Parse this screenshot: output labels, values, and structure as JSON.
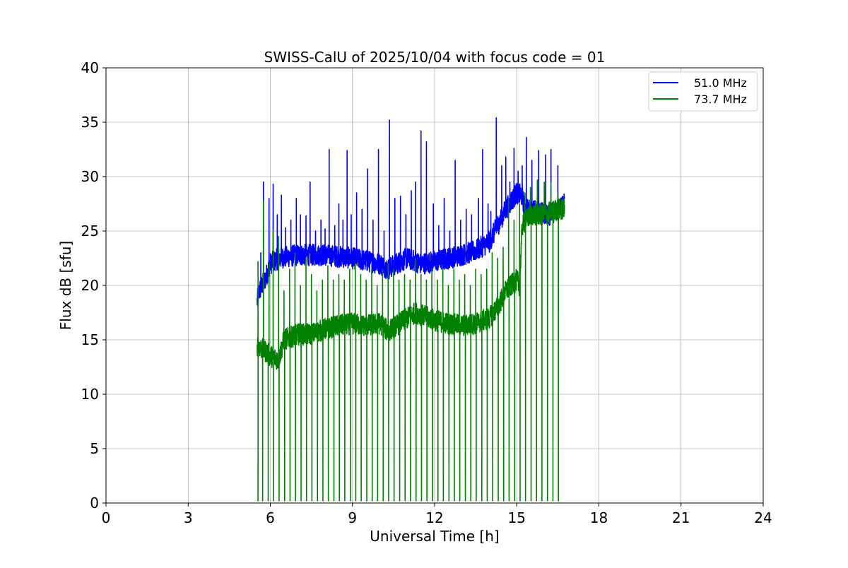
{
  "chart_data": {
    "type": "line",
    "title": "SWISS-CalU of 2025/10/04 with focus code = 01",
    "xlabel": "Universal Time [h]",
    "ylabel": "Flux dB [sfu]",
    "xlim": [
      0,
      24
    ],
    "ylim": [
      0,
      40
    ],
    "xticks": [
      0,
      3,
      6,
      9,
      12,
      15,
      18,
      21,
      24
    ],
    "yticks": [
      0,
      5,
      10,
      15,
      20,
      25,
      30,
      35,
      40
    ],
    "grid": true,
    "legend_position": "top-right",
    "data_start_h": 5.52,
    "data_end_h": 16.75,
    "series": [
      {
        "name": "51.0 MHz",
        "legend_label": "51.0 MHz",
        "color": "#0000ff",
        "baseline": [
          [
            5.52,
            18.5
          ],
          [
            5.6,
            19.5
          ],
          [
            5.8,
            20.5
          ],
          [
            6.0,
            22.0
          ],
          [
            6.3,
            22.5
          ],
          [
            7.0,
            22.8
          ],
          [
            8.0,
            22.8
          ],
          [
            9.0,
            22.5
          ],
          [
            10.0,
            22.0
          ],
          [
            10.3,
            21.5
          ],
          [
            10.6,
            22.0
          ],
          [
            11.0,
            22.5
          ],
          [
            11.5,
            22.0
          ],
          [
            12.0,
            22.2
          ],
          [
            12.5,
            22.5
          ],
          [
            13.0,
            22.8
          ],
          [
            13.5,
            23.2
          ],
          [
            14.0,
            24.0
          ],
          [
            14.3,
            25.5
          ],
          [
            14.6,
            27.0
          ],
          [
            15.0,
            28.5
          ],
          [
            15.2,
            28.2
          ],
          [
            15.3,
            27.0
          ],
          [
            15.8,
            26.8
          ],
          [
            16.2,
            26.5
          ],
          [
            16.5,
            27.0
          ],
          [
            16.75,
            27.5
          ]
        ],
        "noise": 1.0,
        "spikes": [
          [
            5.65,
            23.0
          ],
          [
            5.75,
            29.5
          ],
          [
            5.95,
            28.0
          ],
          [
            6.1,
            29.3
          ],
          [
            6.25,
            26.5
          ],
          [
            6.4,
            28.3
          ],
          [
            6.55,
            25.3
          ],
          [
            6.75,
            26.0
          ],
          [
            6.95,
            28.0
          ],
          [
            7.1,
            26.5
          ],
          [
            7.3,
            26.4
          ],
          [
            7.45,
            29.5
          ],
          [
            7.65,
            25.0
          ],
          [
            7.85,
            26.0
          ],
          [
            8.0,
            25.2
          ],
          [
            8.15,
            32.5
          ],
          [
            8.35,
            25.5
          ],
          [
            8.5,
            27.5
          ],
          [
            8.65,
            26.0
          ],
          [
            8.8,
            32.4
          ],
          [
            8.95,
            26.5
          ],
          [
            9.15,
            28.5
          ],
          [
            9.35,
            27.0
          ],
          [
            9.55,
            30.7
          ],
          [
            9.75,
            26.0
          ],
          [
            9.95,
            32.5
          ],
          [
            10.15,
            25.0
          ],
          [
            10.35,
            35.2
          ],
          [
            10.55,
            28.0
          ],
          [
            10.75,
            28.2
          ],
          [
            10.95,
            26.5
          ],
          [
            11.15,
            28.7
          ],
          [
            11.3,
            29.5
          ],
          [
            11.5,
            34.2
          ],
          [
            11.7,
            33.2
          ],
          [
            11.95,
            27.5
          ],
          [
            12.15,
            25.5
          ],
          [
            12.35,
            28.0
          ],
          [
            12.55,
            25.0
          ],
          [
            12.75,
            31.5
          ],
          [
            12.95,
            26.0
          ],
          [
            13.15,
            27.0
          ],
          [
            13.35,
            26.5
          ],
          [
            13.6,
            28.0
          ],
          [
            13.75,
            32.5
          ],
          [
            13.95,
            27.5
          ],
          [
            14.05,
            26.8
          ],
          [
            14.25,
            35.4
          ],
          [
            14.45,
            31.0
          ],
          [
            14.6,
            31.8
          ],
          [
            14.75,
            29.5
          ],
          [
            14.9,
            32.6
          ],
          [
            15.05,
            30.5
          ],
          [
            15.2,
            31.0
          ],
          [
            15.35,
            33.6
          ],
          [
            15.55,
            31.5
          ],
          [
            15.8,
            32.4
          ],
          [
            16.05,
            32.0
          ],
          [
            16.25,
            32.5
          ],
          [
            16.5,
            31.0
          ]
        ]
      },
      {
        "name": "73.7 MHz",
        "legend_label": "73.7 MHz",
        "color": "#008000",
        "baseline": [
          [
            5.52,
            14.5
          ],
          [
            5.8,
            14.0
          ],
          [
            6.0,
            13.5
          ],
          [
            6.3,
            13.2
          ],
          [
            6.5,
            15.0
          ],
          [
            7.0,
            15.5
          ],
          [
            7.5,
            15.5
          ],
          [
            8.0,
            16.0
          ],
          [
            8.5,
            16.3
          ],
          [
            9.0,
            16.5
          ],
          [
            9.5,
            16.3
          ],
          [
            10.0,
            16.5
          ],
          [
            10.3,
            15.8
          ],
          [
            10.6,
            16.3
          ],
          [
            11.0,
            17.0
          ],
          [
            11.3,
            17.5
          ],
          [
            11.6,
            17.2
          ],
          [
            12.0,
            16.8
          ],
          [
            12.5,
            16.5
          ],
          [
            13.0,
            16.3
          ],
          [
            13.5,
            16.5
          ],
          [
            14.0,
            17.0
          ],
          [
            14.3,
            18.0
          ],
          [
            14.6,
            19.5
          ],
          [
            15.0,
            20.5
          ],
          [
            15.1,
            20.0
          ],
          [
            15.2,
            25.5
          ],
          [
            15.5,
            26.5
          ],
          [
            16.0,
            26.5
          ],
          [
            16.5,
            27.0
          ],
          [
            16.75,
            27.0
          ]
        ],
        "noise": 1.0,
        "spikes": [
          [
            5.55,
            22.2
          ],
          [
            5.75,
            27.8
          ],
          [
            5.95,
            22.0
          ],
          [
            6.1,
            25.0
          ],
          [
            6.3,
            24.5
          ],
          [
            6.5,
            19.5
          ],
          [
            6.7,
            21.5
          ],
          [
            6.9,
            23.0
          ],
          [
            7.1,
            20.0
          ],
          [
            7.3,
            22.5
          ],
          [
            7.5,
            21.0
          ],
          [
            7.7,
            19.5
          ],
          [
            7.9,
            20.5
          ],
          [
            8.1,
            21.8
          ],
          [
            8.3,
            20.5
          ],
          [
            8.5,
            21.0
          ],
          [
            8.7,
            20.5
          ],
          [
            8.9,
            21.5
          ],
          [
            9.1,
            22.0
          ],
          [
            9.3,
            21.0
          ],
          [
            9.5,
            20.5
          ],
          [
            9.7,
            21.5
          ],
          [
            9.9,
            20.0
          ],
          [
            10.1,
            21.5
          ],
          [
            10.3,
            22.0
          ],
          [
            10.5,
            21.5
          ],
          [
            10.7,
            20.5
          ],
          [
            10.9,
            21.0
          ],
          [
            11.1,
            20.5
          ],
          [
            11.3,
            22.5
          ],
          [
            11.5,
            21.0
          ],
          [
            11.7,
            20.5
          ],
          [
            11.9,
            21.5
          ],
          [
            12.1,
            20.5
          ],
          [
            12.3,
            21.5
          ],
          [
            12.5,
            20.0
          ],
          [
            12.7,
            21.5
          ],
          [
            12.9,
            20.5
          ],
          [
            13.1,
            21.0
          ],
          [
            13.3,
            20.0
          ],
          [
            13.5,
            21.5
          ],
          [
            13.7,
            21.0
          ],
          [
            13.9,
            21.5
          ],
          [
            14.1,
            23.0
          ],
          [
            14.3,
            22.5
          ],
          [
            14.5,
            23.5
          ],
          [
            14.7,
            28.0
          ],
          [
            14.9,
            26.0
          ],
          [
            15.1,
            27.5
          ],
          [
            15.3,
            28.5
          ],
          [
            15.5,
            29.0
          ],
          [
            15.75,
            29.7
          ],
          [
            16.0,
            29.5
          ],
          [
            16.25,
            29.5
          ],
          [
            16.5,
            28.5
          ]
        ],
        "dropouts": [
          5.55,
          5.72,
          5.92,
          6.12,
          6.32,
          6.52,
          6.72,
          6.92,
          7.12,
          7.32,
          7.52,
          7.72,
          7.92,
          8.12,
          8.32,
          8.52,
          8.72,
          8.92,
          9.12,
          9.32,
          9.52,
          9.72,
          9.92,
          10.12,
          10.32,
          10.52,
          10.72,
          10.92,
          11.12,
          11.32,
          11.52,
          11.72,
          11.92,
          12.12,
          12.32,
          12.52,
          12.72,
          12.92,
          13.12,
          13.32,
          13.52,
          13.72,
          13.92,
          14.12,
          14.32,
          14.52,
          14.72,
          14.92,
          15.12,
          15.32,
          15.52,
          15.72,
          15.92,
          16.12,
          16.32,
          16.52
        ]
      }
    ]
  }
}
